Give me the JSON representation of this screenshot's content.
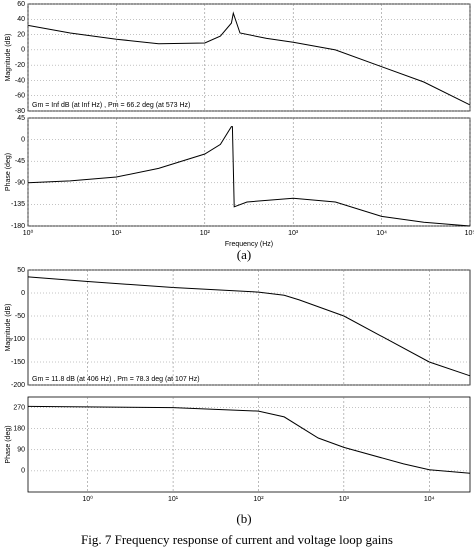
{
  "chart_data": [
    {
      "type": "line",
      "ylabel": "Magnitude (dB)",
      "log_x": true,
      "grid": true,
      "color": "#000000",
      "x": [
        1,
        3,
        10,
        30,
        100,
        150,
        200,
        210,
        250,
        500,
        1000,
        3000,
        10000,
        30000,
        100000
      ],
      "values": [
        32,
        22,
        14,
        8,
        9,
        18,
        35,
        48,
        22,
        15,
        10,
        0,
        -22,
        -42,
        -72
      ],
      "xlim": [
        1,
        100000
      ],
      "xticks": [],
      "ylim": [
        -80,
        60
      ],
      "yticks": [
        60,
        40,
        20,
        0,
        -20,
        -40,
        -60,
        -80
      ],
      "annotation": "Gm = Inf dB (at Inf Hz) ,  Pm = 66.2 deg (at 573 Hz)"
    },
    {
      "type": "line",
      "ylabel": "Phase (deg)",
      "xlabel": "Frequency (Hz)",
      "log_x": true,
      "grid": true,
      "color": "#000000",
      "x": [
        1,
        3,
        10,
        30,
        100,
        150,
        200,
        205,
        215,
        300,
        1000,
        3000,
        10000,
        30000,
        100000
      ],
      "values": [
        -90,
        -86,
        -78,
        -60,
        -30,
        -10,
        27,
        27,
        -140,
        -130,
        -122,
        -130,
        -160,
        -172,
        -180
      ],
      "xlim": [
        1,
        100000
      ],
      "xticks": [
        {
          "value": 1,
          "label": "10⁰"
        },
        {
          "value": 10,
          "label": "10¹"
        },
        {
          "value": 100,
          "label": "10²"
        },
        {
          "value": 1000,
          "label": "10³"
        },
        {
          "value": 10000,
          "label": "10⁴"
        },
        {
          "value": 100000,
          "label": "10⁵"
        }
      ],
      "ylim": [
        -180,
        45
      ],
      "yticks": [
        45,
        0,
        -45,
        -90,
        -135,
        -180
      ]
    },
    {
      "type": "line",
      "ylabel": "Magnitude (dB)",
      "log_x": true,
      "grid": true,
      "color": "#000000",
      "x": [
        0.2,
        1,
        10,
        100,
        200,
        300,
        1000,
        10000,
        30000
      ],
      "values": [
        35,
        25,
        12,
        2,
        -5,
        -15,
        -50,
        -150,
        -180
      ],
      "xlim": [
        0.2,
        30000
      ],
      "xticks": [],
      "ylim": [
        -200,
        50
      ],
      "yticks": [
        50,
        0,
        -50,
        -100,
        -150,
        -200
      ],
      "annotation": "Gm = 11.8 dB (at 406 Hz) ,  Pm = 78.3 deg (at 107 Hz)"
    },
    {
      "type": "line",
      "ylabel": "Phase (deg)",
      "log_x": true,
      "grid": true,
      "color": "#000000",
      "x": [
        0.2,
        10,
        100,
        200,
        500,
        1000,
        5000,
        10000,
        30000
      ],
      "values": [
        275,
        270,
        255,
        230,
        140,
        100,
        30,
        5,
        -10
      ],
      "xlim": [
        0.2,
        30000
      ],
      "xticks": [
        {
          "value": 1,
          "label": "10⁰"
        },
        {
          "value": 10,
          "label": "10¹"
        },
        {
          "value": 100,
          "label": "10²"
        },
        {
          "value": 1000,
          "label": "10³"
        },
        {
          "value": 10000,
          "label": "10⁴"
        }
      ],
      "ylim": [
        -90,
        315
      ],
      "yticks": [
        270,
        180,
        90,
        0
      ]
    }
  ],
  "subcaptions": [
    "(a)",
    "(b)"
  ],
  "figure_caption": "Fig. 7 Frequency response of current and voltage loop gains"
}
